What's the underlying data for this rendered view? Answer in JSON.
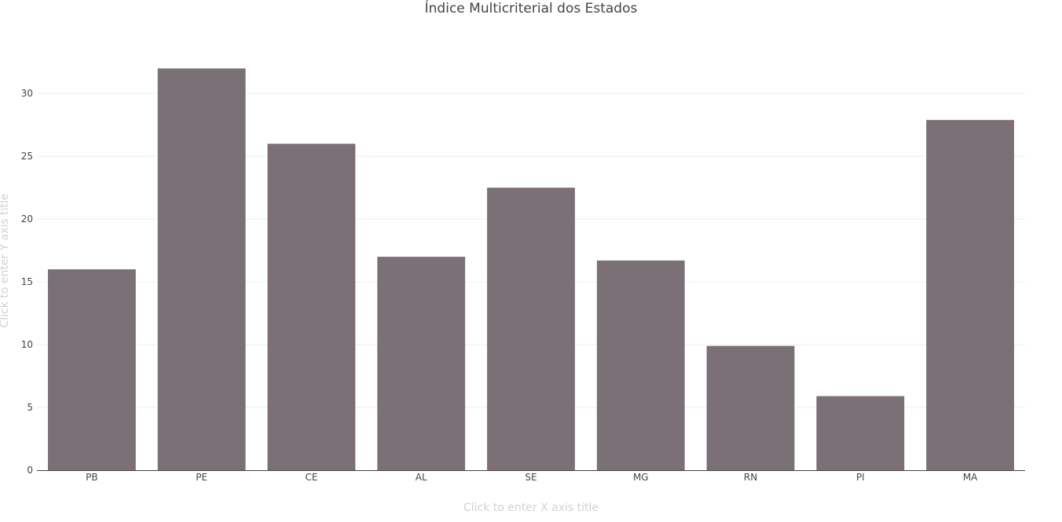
{
  "chart_data": {
    "type": "bar",
    "title": "Índice Multicriterial dos Estados",
    "xlabel_placeholder": "Click to enter X axis title",
    "ylabel_placeholder": "Click to enter Y axis title",
    "categories": [
      "PB",
      "PE",
      "CE",
      "AL",
      "SE",
      "MG",
      "RN",
      "PI",
      "MA"
    ],
    "values": [
      16,
      32,
      26,
      17,
      22.5,
      16.7,
      9.9,
      5.9,
      27.9
    ],
    "ylim": [
      0,
      33.7
    ],
    "yticks": [
      0,
      5,
      10,
      15,
      20,
      25,
      30
    ],
    "grid": true,
    "legend": "none",
    "bar_color": "#7b7076",
    "grid_color": "#eeeeee",
    "axis_color": "#444444"
  }
}
